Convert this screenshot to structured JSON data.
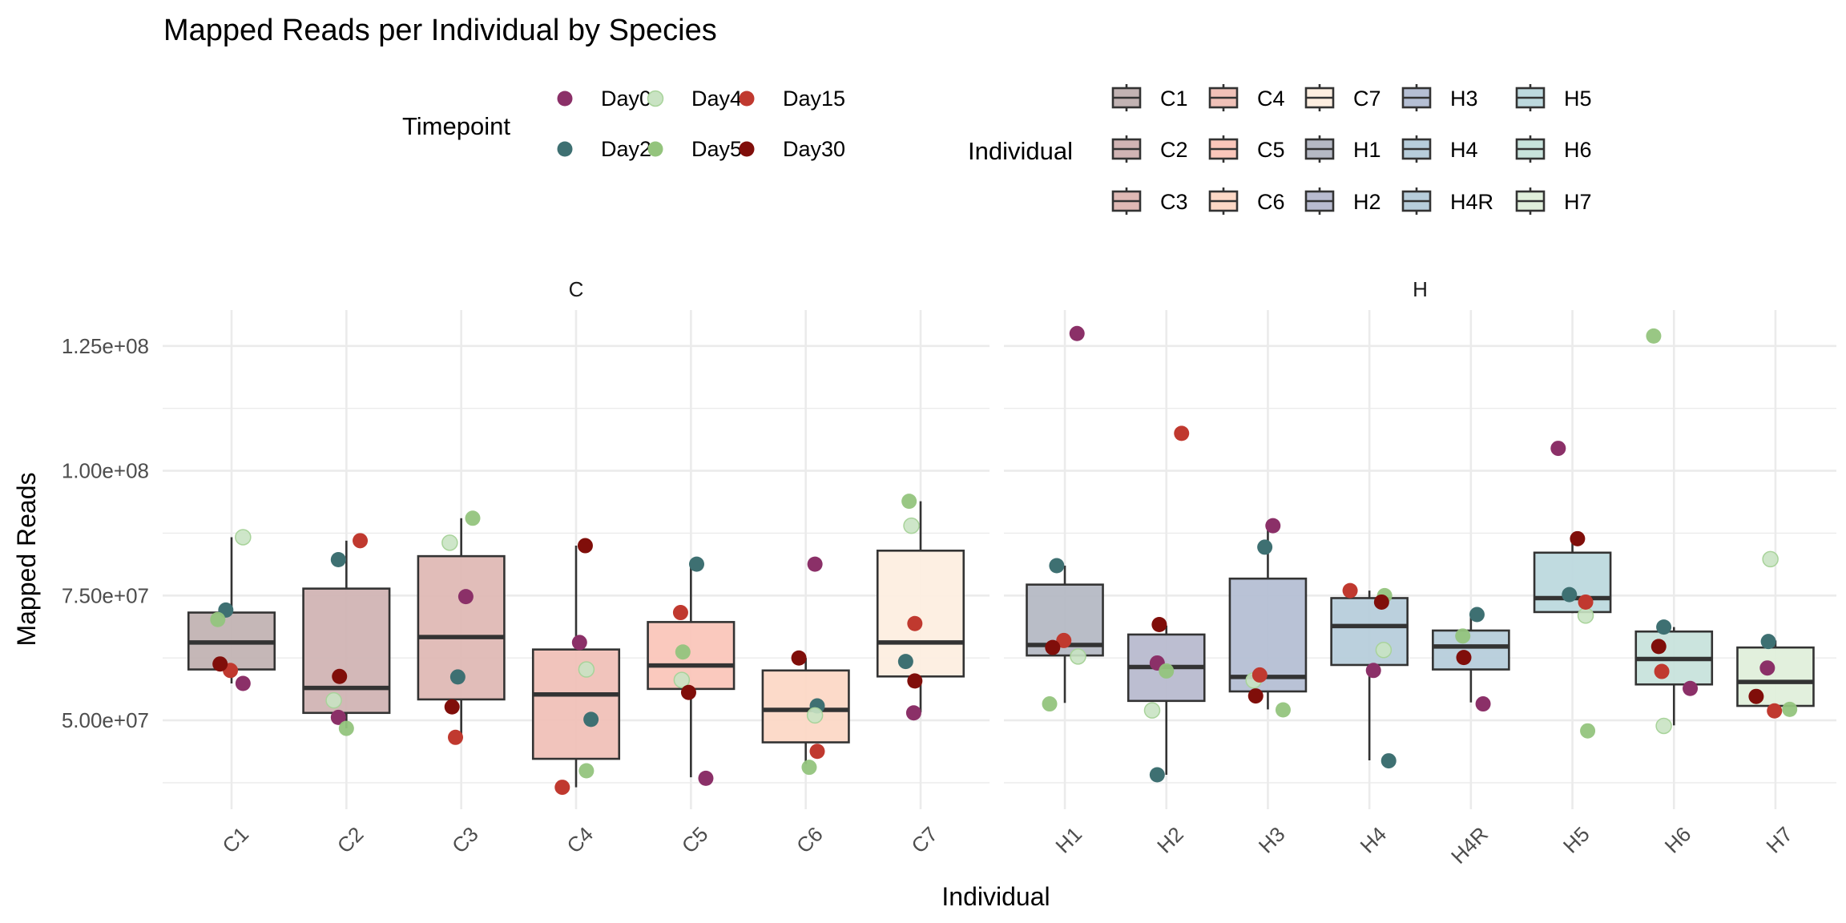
{
  "chart_data": {
    "type": "boxplot",
    "title": "Mapped Reads per Individual by Species",
    "xlabel": "Individual",
    "ylabel": "Mapped Reads",
    "ylim": [
      32200000,
      132200000
    ],
    "yticks": [
      50000000,
      75000000,
      100000000,
      125000000
    ],
    "ytick_labels": [
      "5.00e+07",
      "7.50e+07",
      "1.00e+08",
      "1.25e+08"
    ],
    "y_minor": [
      37500000,
      62500000,
      87500000,
      112500000
    ],
    "grid": true,
    "facet_by": "Species",
    "facets": [
      {
        "label": "C",
        "categories": [
          "C1",
          "C2",
          "C3",
          "C4",
          "C5",
          "C6",
          "C7"
        ]
      },
      {
        "label": "H",
        "categories": [
          "H1",
          "H2",
          "H3",
          "H4",
          "H4R",
          "H5",
          "H6",
          "H7"
        ]
      }
    ],
    "fill_legend": {
      "title": "Individual",
      "placement": "top",
      "items": [
        {
          "name": "C1",
          "color": "#c2b3b3"
        },
        {
          "name": "C2",
          "color": "#d1b4b4"
        },
        {
          "name": "C3",
          "color": "#dfb9b5"
        },
        {
          "name": "C4",
          "color": "#f0c1b8"
        },
        {
          "name": "C5",
          "color": "#fac6ba"
        },
        {
          "name": "C6",
          "color": "#fcd8c6"
        },
        {
          "name": "C7",
          "color": "#fdeee0"
        },
        {
          "name": "H1",
          "color": "#b5b9c4"
        },
        {
          "name": "H2",
          "color": "#b8bbcf"
        },
        {
          "name": "H3",
          "color": "#b5bfd4"
        },
        {
          "name": "H4",
          "color": "#b7cddb"
        },
        {
          "name": "H4R",
          "color": "#b7cddb"
        },
        {
          "name": "H5",
          "color": "#bdd9de"
        },
        {
          "name": "H6",
          "color": "#c8e3dc"
        },
        {
          "name": "H7",
          "color": "#e0efdb"
        }
      ]
    },
    "color_legend": {
      "title": "Timepoint",
      "placement": "top",
      "items": [
        {
          "name": "Day0",
          "color": "#8b3068"
        },
        {
          "name": "Day2",
          "color": "#3e7072"
        },
        {
          "name": "Day4",
          "color": "#c9e3c3"
        },
        {
          "name": "Day5",
          "color": "#94c47d"
        },
        {
          "name": "Day15",
          "color": "#c0392f"
        },
        {
          "name": "Day30",
          "color": "#800e0a"
        }
      ]
    },
    "boxes": [
      {
        "individual": "C1",
        "species": "C",
        "whisker_low": 57400000,
        "q1": 60200000,
        "median": 65600000,
        "q3": 71600000,
        "whisker_high": 86700000
      },
      {
        "individual": "C2",
        "species": "C",
        "whisker_low": 48400000,
        "q1": 51500000,
        "median": 56500000,
        "q3": 76400000,
        "whisker_high": 86000000
      },
      {
        "individual": "C3",
        "species": "C",
        "whisker_low": 46600000,
        "q1": 54200000,
        "median": 66700000,
        "q3": 82900000,
        "whisker_high": 90500000
      },
      {
        "individual": "C4",
        "species": "C",
        "whisker_low": 36600000,
        "q1": 42300000,
        "median": 55200000,
        "q3": 64200000,
        "whisker_high": 85000000
      },
      {
        "individual": "C5",
        "species": "C",
        "whisker_low": 38600000,
        "q1": 56300000,
        "median": 61000000,
        "q3": 69700000,
        "whisker_high": 81300000
      },
      {
        "individual": "C6",
        "species": "C",
        "whisker_low": 41300000,
        "q1": 45600000,
        "median": 52100000,
        "q3": 60000000,
        "whisker_high": 62500000
      },
      {
        "individual": "C7",
        "species": "C",
        "whisker_low": 51600000,
        "q1": 58800000,
        "median": 65600000,
        "q3": 84000000,
        "whisker_high": 93900000
      },
      {
        "individual": "H1",
        "species": "H",
        "whisker_low": 53500000,
        "q1": 63000000,
        "median": 65100000,
        "q3": 77200000,
        "whisker_high": 81000000
      },
      {
        "individual": "H2",
        "species": "H",
        "whisker_low": 39100000,
        "q1": 53900000,
        "median": 60700000,
        "q3": 67200000,
        "whisker_high": 69000000
      },
      {
        "individual": "H3",
        "species": "H",
        "whisker_low": 52200000,
        "q1": 55800000,
        "median": 58700000,
        "q3": 78400000,
        "whisker_high": 89000000
      },
      {
        "individual": "H4",
        "species": "H",
        "whisker_low": 42000000,
        "q1": 61100000,
        "median": 68900000,
        "q3": 74500000,
        "whisker_high": 76000000
      },
      {
        "individual": "H4R",
        "species": "H",
        "whisker_low": 53600000,
        "q1": 60200000,
        "median": 64800000,
        "q3": 68000000,
        "whisker_high": 71300000
      },
      {
        "individual": "H5",
        "species": "H",
        "whisker_low": 71500000,
        "q1": 71700000,
        "median": 74500000,
        "q3": 83600000,
        "whisker_high": 86300000
      },
      {
        "individual": "H6",
        "species": "H",
        "whisker_low": 49000000,
        "q1": 57200000,
        "median": 62300000,
        "q3": 67800000,
        "whisker_high": 68700000
      },
      {
        "individual": "H7",
        "species": "H",
        "whisker_low": 52000000,
        "q1": 52900000,
        "median": 57700000,
        "q3": 64600000,
        "whisker_high": 66000000
      }
    ],
    "points": [
      {
        "individual": "C1",
        "timepoint": "Day0",
        "value": 57400000,
        "jitter": 0.1
      },
      {
        "individual": "C1",
        "timepoint": "Day2",
        "value": 72100000,
        "jitter": -0.05
      },
      {
        "individual": "C1",
        "timepoint": "Day4",
        "value": 86700000,
        "jitter": 0.1
      },
      {
        "individual": "C1",
        "timepoint": "Day5",
        "value": 70200000,
        "jitter": -0.12
      },
      {
        "individual": "C1",
        "timepoint": "Day15",
        "value": 60000000,
        "jitter": -0.01
      },
      {
        "individual": "C1",
        "timepoint": "Day30",
        "value": 61300000,
        "jitter": -0.1
      },
      {
        "individual": "C2",
        "timepoint": "Day0",
        "value": 50600000,
        "jitter": -0.07
      },
      {
        "individual": "C2",
        "timepoint": "Day2",
        "value": 82200000,
        "jitter": -0.07
      },
      {
        "individual": "C2",
        "timepoint": "Day4",
        "value": 54000000,
        "jitter": -0.11
      },
      {
        "individual": "C2",
        "timepoint": "Day5",
        "value": 48400000,
        "jitter": 0.0
      },
      {
        "individual": "C2",
        "timepoint": "Day15",
        "value": 86000000,
        "jitter": 0.12
      },
      {
        "individual": "C2",
        "timepoint": "Day30",
        "value": 58800000,
        "jitter": -0.06
      },
      {
        "individual": "C3",
        "timepoint": "Day0",
        "value": 74800000,
        "jitter": 0.04
      },
      {
        "individual": "C3",
        "timepoint": "Day2",
        "value": 58700000,
        "jitter": -0.03
      },
      {
        "individual": "C3",
        "timepoint": "Day4",
        "value": 85600000,
        "jitter": -0.1
      },
      {
        "individual": "C3",
        "timepoint": "Day5",
        "value": 90500000,
        "jitter": 0.1
      },
      {
        "individual": "C3",
        "timepoint": "Day15",
        "value": 46600000,
        "jitter": -0.05
      },
      {
        "individual": "C3",
        "timepoint": "Day30",
        "value": 52700000,
        "jitter": -0.08
      },
      {
        "individual": "C4",
        "timepoint": "Day0",
        "value": 65600000,
        "jitter": 0.03
      },
      {
        "individual": "C4",
        "timepoint": "Day2",
        "value": 50200000,
        "jitter": 0.13
      },
      {
        "individual": "C4",
        "timepoint": "Day4",
        "value": 60200000,
        "jitter": 0.09
      },
      {
        "individual": "C4",
        "timepoint": "Day5",
        "value": 39900000,
        "jitter": 0.09
      },
      {
        "individual": "C4",
        "timepoint": "Day15",
        "value": 36600000,
        "jitter": -0.12
      },
      {
        "individual": "C4",
        "timepoint": "Day30",
        "value": 85000000,
        "jitter": 0.08
      },
      {
        "individual": "C5",
        "timepoint": "Day0",
        "value": 38400000,
        "jitter": 0.13
      },
      {
        "individual": "C5",
        "timepoint": "Day2",
        "value": 81300000,
        "jitter": 0.05
      },
      {
        "individual": "C5",
        "timepoint": "Day4",
        "value": 58100000,
        "jitter": -0.08
      },
      {
        "individual": "C5",
        "timepoint": "Day5",
        "value": 63700000,
        "jitter": -0.07
      },
      {
        "individual": "C5",
        "timepoint": "Day15",
        "value": 71600000,
        "jitter": -0.09
      },
      {
        "individual": "C5",
        "timepoint": "Day30",
        "value": 55600000,
        "jitter": -0.02
      },
      {
        "individual": "C6",
        "timepoint": "Day0",
        "value": 81300000,
        "jitter": 0.08
      },
      {
        "individual": "C6",
        "timepoint": "Day2",
        "value": 52900000,
        "jitter": 0.1
      },
      {
        "individual": "C6",
        "timepoint": "Day4",
        "value": 51000000,
        "jitter": 0.08
      },
      {
        "individual": "C6",
        "timepoint": "Day5",
        "value": 40600000,
        "jitter": 0.03
      },
      {
        "individual": "C6",
        "timepoint": "Day15",
        "value": 43800000,
        "jitter": 0.1
      },
      {
        "individual": "C6",
        "timepoint": "Day30",
        "value": 62500000,
        "jitter": -0.06
      },
      {
        "individual": "C7",
        "timepoint": "Day0",
        "value": 51500000,
        "jitter": -0.06
      },
      {
        "individual": "C7",
        "timepoint": "Day2",
        "value": 61800000,
        "jitter": -0.13
      },
      {
        "individual": "C7",
        "timepoint": "Day4",
        "value": 89000000,
        "jitter": -0.08
      },
      {
        "individual": "C7",
        "timepoint": "Day5",
        "value": 93900000,
        "jitter": -0.1
      },
      {
        "individual": "C7",
        "timepoint": "Day15",
        "value": 69400000,
        "jitter": -0.05
      },
      {
        "individual": "C7",
        "timepoint": "Day30",
        "value": 57900000,
        "jitter": -0.05
      },
      {
        "individual": "H1",
        "timepoint": "Day0",
        "value": 127500000,
        "jitter": 0.12
      },
      {
        "individual": "H1",
        "timepoint": "Day2",
        "value": 81000000,
        "jitter": -0.08
      },
      {
        "individual": "H1",
        "timepoint": "Day4",
        "value": 62800000,
        "jitter": 0.13
      },
      {
        "individual": "H1",
        "timepoint": "Day5",
        "value": 53300000,
        "jitter": -0.15
      },
      {
        "individual": "H1",
        "timepoint": "Day15",
        "value": 66000000,
        "jitter": -0.01
      },
      {
        "individual": "H1",
        "timepoint": "Day30",
        "value": 64600000,
        "jitter": -0.12
      },
      {
        "individual": "H2",
        "timepoint": "Day0",
        "value": 61500000,
        "jitter": -0.09
      },
      {
        "individual": "H2",
        "timepoint": "Day2",
        "value": 39100000,
        "jitter": -0.09
      },
      {
        "individual": "H2",
        "timepoint": "Day4",
        "value": 52000000,
        "jitter": -0.14
      },
      {
        "individual": "H2",
        "timepoint": "Day5",
        "value": 59900000,
        "jitter": 0.0
      },
      {
        "individual": "H2",
        "timepoint": "Day15",
        "value": 107500000,
        "jitter": 0.15
      },
      {
        "individual": "H2",
        "timepoint": "Day30",
        "value": 69200000,
        "jitter": -0.07
      },
      {
        "individual": "H3",
        "timepoint": "Day0",
        "value": 89000000,
        "jitter": 0.05
      },
      {
        "individual": "H3",
        "timepoint": "Day2",
        "value": 84700000,
        "jitter": -0.03
      },
      {
        "individual": "H3",
        "timepoint": "Day4",
        "value": 58000000,
        "jitter": -0.14
      },
      {
        "individual": "H3",
        "timepoint": "Day5",
        "value": 52100000,
        "jitter": 0.15
      },
      {
        "individual": "H3",
        "timepoint": "Day15",
        "value": 59100000,
        "jitter": -0.08
      },
      {
        "individual": "H3",
        "timepoint": "Day30",
        "value": 54900000,
        "jitter": -0.12
      },
      {
        "individual": "H4",
        "timepoint": "Day0",
        "value": 60000000,
        "jitter": 0.04
      },
      {
        "individual": "H4",
        "timepoint": "Day2",
        "value": 41900000,
        "jitter": 0.19
      },
      {
        "individual": "H4",
        "timepoint": "Day4",
        "value": 64100000,
        "jitter": 0.14
      },
      {
        "individual": "H4",
        "timepoint": "Day5",
        "value": 75000000,
        "jitter": 0.15
      },
      {
        "individual": "H4",
        "timepoint": "Day15",
        "value": 76000000,
        "jitter": -0.19
      },
      {
        "individual": "H4",
        "timepoint": "Day30",
        "value": 73700000,
        "jitter": 0.12
      },
      {
        "individual": "H4R",
        "timepoint": "Day0",
        "value": 53300000,
        "jitter": 0.12
      },
      {
        "individual": "H4R",
        "timepoint": "Day2",
        "value": 71200000,
        "jitter": 0.06
      },
      {
        "individual": "H4R",
        "timepoint": "Day5",
        "value": 66900000,
        "jitter": -0.08
      },
      {
        "individual": "H4R",
        "timepoint": "Day30",
        "value": 62600000,
        "jitter": -0.07
      },
      {
        "individual": "H5",
        "timepoint": "Day0",
        "value": 104500000,
        "jitter": -0.14
      },
      {
        "individual": "H5",
        "timepoint": "Day2",
        "value": 75200000,
        "jitter": -0.03
      },
      {
        "individual": "H5",
        "timepoint": "Day4",
        "value": 71000000,
        "jitter": 0.13
      },
      {
        "individual": "H5",
        "timepoint": "Day5",
        "value": 47900000,
        "jitter": 0.15
      },
      {
        "individual": "H5",
        "timepoint": "Day15",
        "value": 73700000,
        "jitter": 0.13
      },
      {
        "individual": "H5",
        "timepoint": "Day30",
        "value": 86400000,
        "jitter": 0.05
      },
      {
        "individual": "H6",
        "timepoint": "Day0",
        "value": 56400000,
        "jitter": 0.16
      },
      {
        "individual": "H6",
        "timepoint": "Day2",
        "value": 68700000,
        "jitter": -0.1
      },
      {
        "individual": "H6",
        "timepoint": "Day4",
        "value": 48900000,
        "jitter": -0.1
      },
      {
        "individual": "H6",
        "timepoint": "Day5",
        "value": 127000000,
        "jitter": -0.2
      },
      {
        "individual": "H6",
        "timepoint": "Day15",
        "value": 59800000,
        "jitter": -0.12
      },
      {
        "individual": "H6",
        "timepoint": "Day30",
        "value": 64800000,
        "jitter": -0.15
      },
      {
        "individual": "H7",
        "timepoint": "Day0",
        "value": 60500000,
        "jitter": -0.08
      },
      {
        "individual": "H7",
        "timepoint": "Day2",
        "value": 65800000,
        "jitter": -0.07
      },
      {
        "individual": "H7",
        "timepoint": "Day4",
        "value": 82300000,
        "jitter": -0.05
      },
      {
        "individual": "H7",
        "timepoint": "Day5",
        "value": 52200000,
        "jitter": 0.14
      },
      {
        "individual": "H7",
        "timepoint": "Day15",
        "value": 51900000,
        "jitter": -0.01
      },
      {
        "individual": "H7",
        "timepoint": "Day30",
        "value": 54800000,
        "jitter": -0.19
      }
    ]
  }
}
